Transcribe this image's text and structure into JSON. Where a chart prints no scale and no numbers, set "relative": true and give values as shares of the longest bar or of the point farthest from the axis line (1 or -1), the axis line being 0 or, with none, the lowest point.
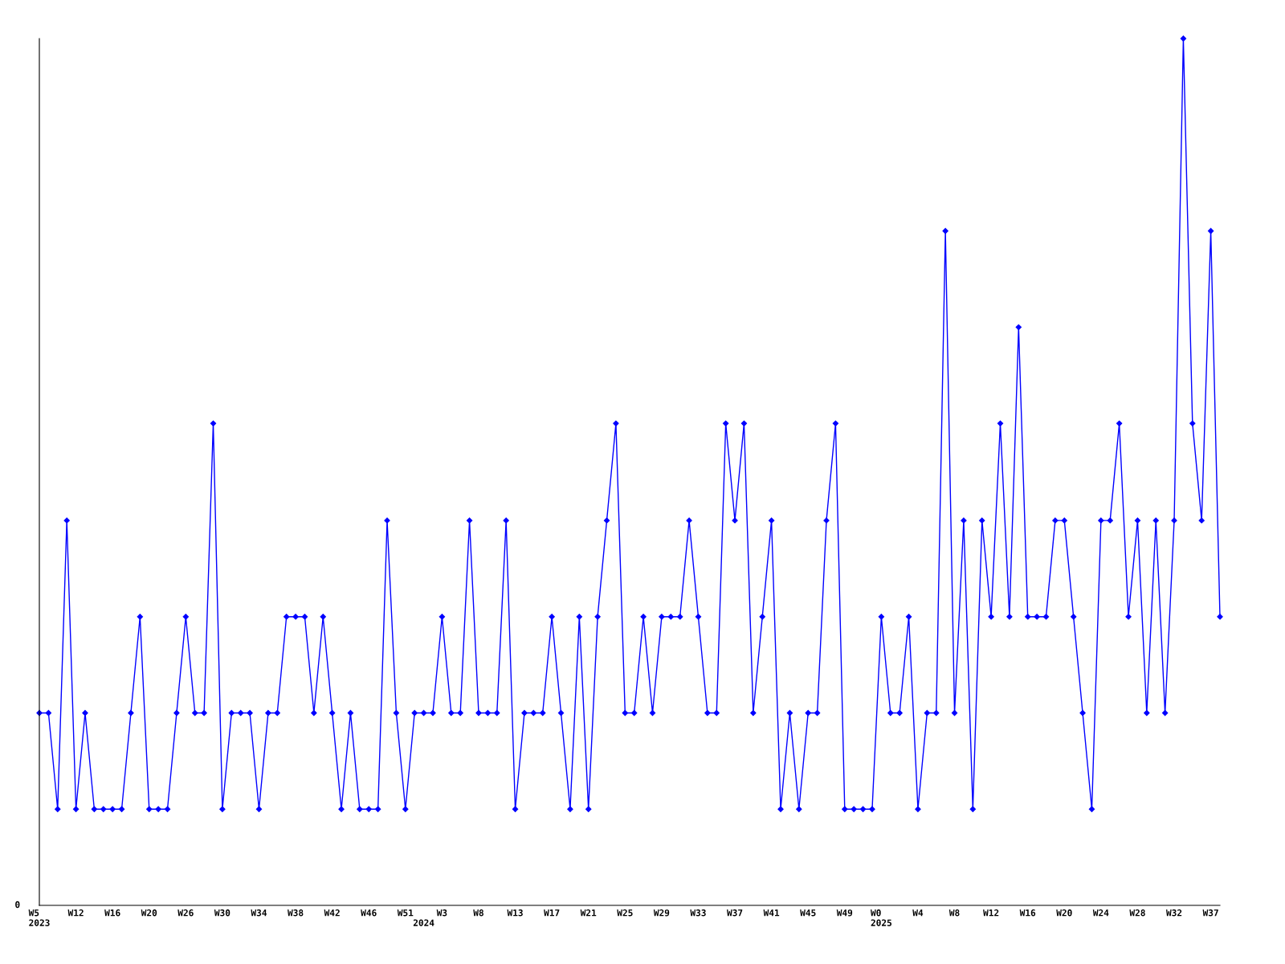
{
  "chart_data": {
    "type": "line",
    "relative": true,
    "annotations": [
      "0"
    ],
    "marker": "diamond",
    "line_style": "solid",
    "categories": [
      "W5\n2023",
      null,
      null,
      null,
      "W12",
      null,
      null,
      null,
      "W16",
      null,
      null,
      null,
      "W20",
      null,
      null,
      null,
      "W26",
      null,
      null,
      null,
      "W30",
      null,
      null,
      null,
      "W34",
      null,
      null,
      null,
      "W38",
      null,
      null,
      null,
      "W42",
      null,
      null,
      null,
      "W46",
      null,
      null,
      null,
      "W51",
      null,
      "2024",
      null,
      "W3",
      null,
      null,
      null,
      "W8",
      null,
      null,
      null,
      "W13",
      null,
      null,
      null,
      "W17",
      null,
      null,
      null,
      "W21",
      null,
      null,
      null,
      "W25",
      null,
      null,
      null,
      "W29",
      null,
      null,
      null,
      "W33",
      null,
      null,
      null,
      "W37",
      null,
      null,
      null,
      "W41",
      null,
      null,
      null,
      "W45",
      null,
      null,
      null,
      "W49",
      null,
      null,
      null,
      "W0\n2025",
      null,
      null,
      null,
      "W4",
      null,
      null,
      null,
      "W8",
      null,
      null,
      null,
      "W12",
      null,
      null,
      null,
      "W16",
      null,
      null,
      null,
      "W20",
      null,
      null,
      null,
      "W24",
      null,
      null,
      null,
      "W28",
      null,
      null,
      null,
      "W32",
      null,
      null,
      null,
      "W37",
      null
    ],
    "series": [
      {
        "color": "#0000ff",
        "values": [
          0.222,
          0.222,
          0.111,
          0.444,
          0.111,
          0.222,
          0.111,
          0.111,
          0.111,
          0.111,
          0.222,
          0.333,
          0.111,
          0.111,
          0.111,
          0.222,
          0.333,
          0.222,
          0.222,
          0.556,
          0.111,
          0.222,
          0.222,
          0.222,
          0.111,
          0.222,
          0.222,
          0.333,
          0.333,
          0.333,
          0.222,
          0.333,
          0.222,
          0.111,
          0.222,
          0.111,
          0.111,
          0.111,
          0.444,
          0.222,
          0.111,
          0.222,
          0.222,
          0.222,
          0.333,
          0.222,
          0.222,
          0.444,
          0.222,
          0.222,
          0.222,
          0.444,
          0.111,
          0.222,
          0.222,
          0.222,
          0.333,
          0.222,
          0.111,
          0.333,
          0.111,
          0.333,
          0.444,
          0.556,
          0.222,
          0.222,
          0.333,
          0.222,
          0.333,
          0.333,
          0.333,
          0.444,
          0.333,
          0.222,
          0.222,
          0.556,
          0.444,
          0.556,
          0.222,
          0.333,
          0.444,
          0.111,
          0.222,
          0.111,
          0.222,
          0.222,
          0.444,
          0.556,
          0.111,
          0.111,
          0.111,
          0.111,
          0.333,
          0.222,
          0.222,
          0.333,
          0.111,
          0.222,
          0.222,
          0.778,
          0.222,
          0.444,
          0.111,
          0.444,
          0.333,
          0.556,
          0.333,
          0.667,
          0.333,
          0.333,
          0.333,
          0.444,
          0.444,
          0.333,
          0.222,
          0.111,
          0.444,
          0.444,
          0.556,
          0.333,
          0.444,
          0.222,
          0.444,
          0.222,
          0.444,
          1,
          0.556,
          0.444,
          0.778,
          0.333
        ]
      }
    ]
  }
}
